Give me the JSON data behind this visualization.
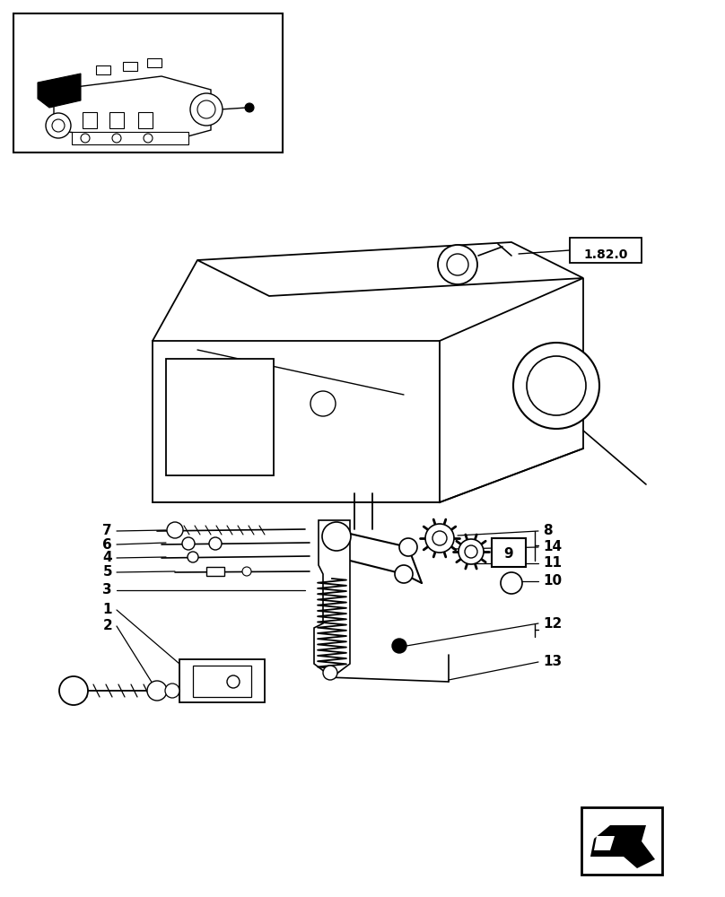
{
  "bg_color": "#ffffff",
  "fig_width": 8.08,
  "fig_height": 10.0,
  "dpi": 100
}
